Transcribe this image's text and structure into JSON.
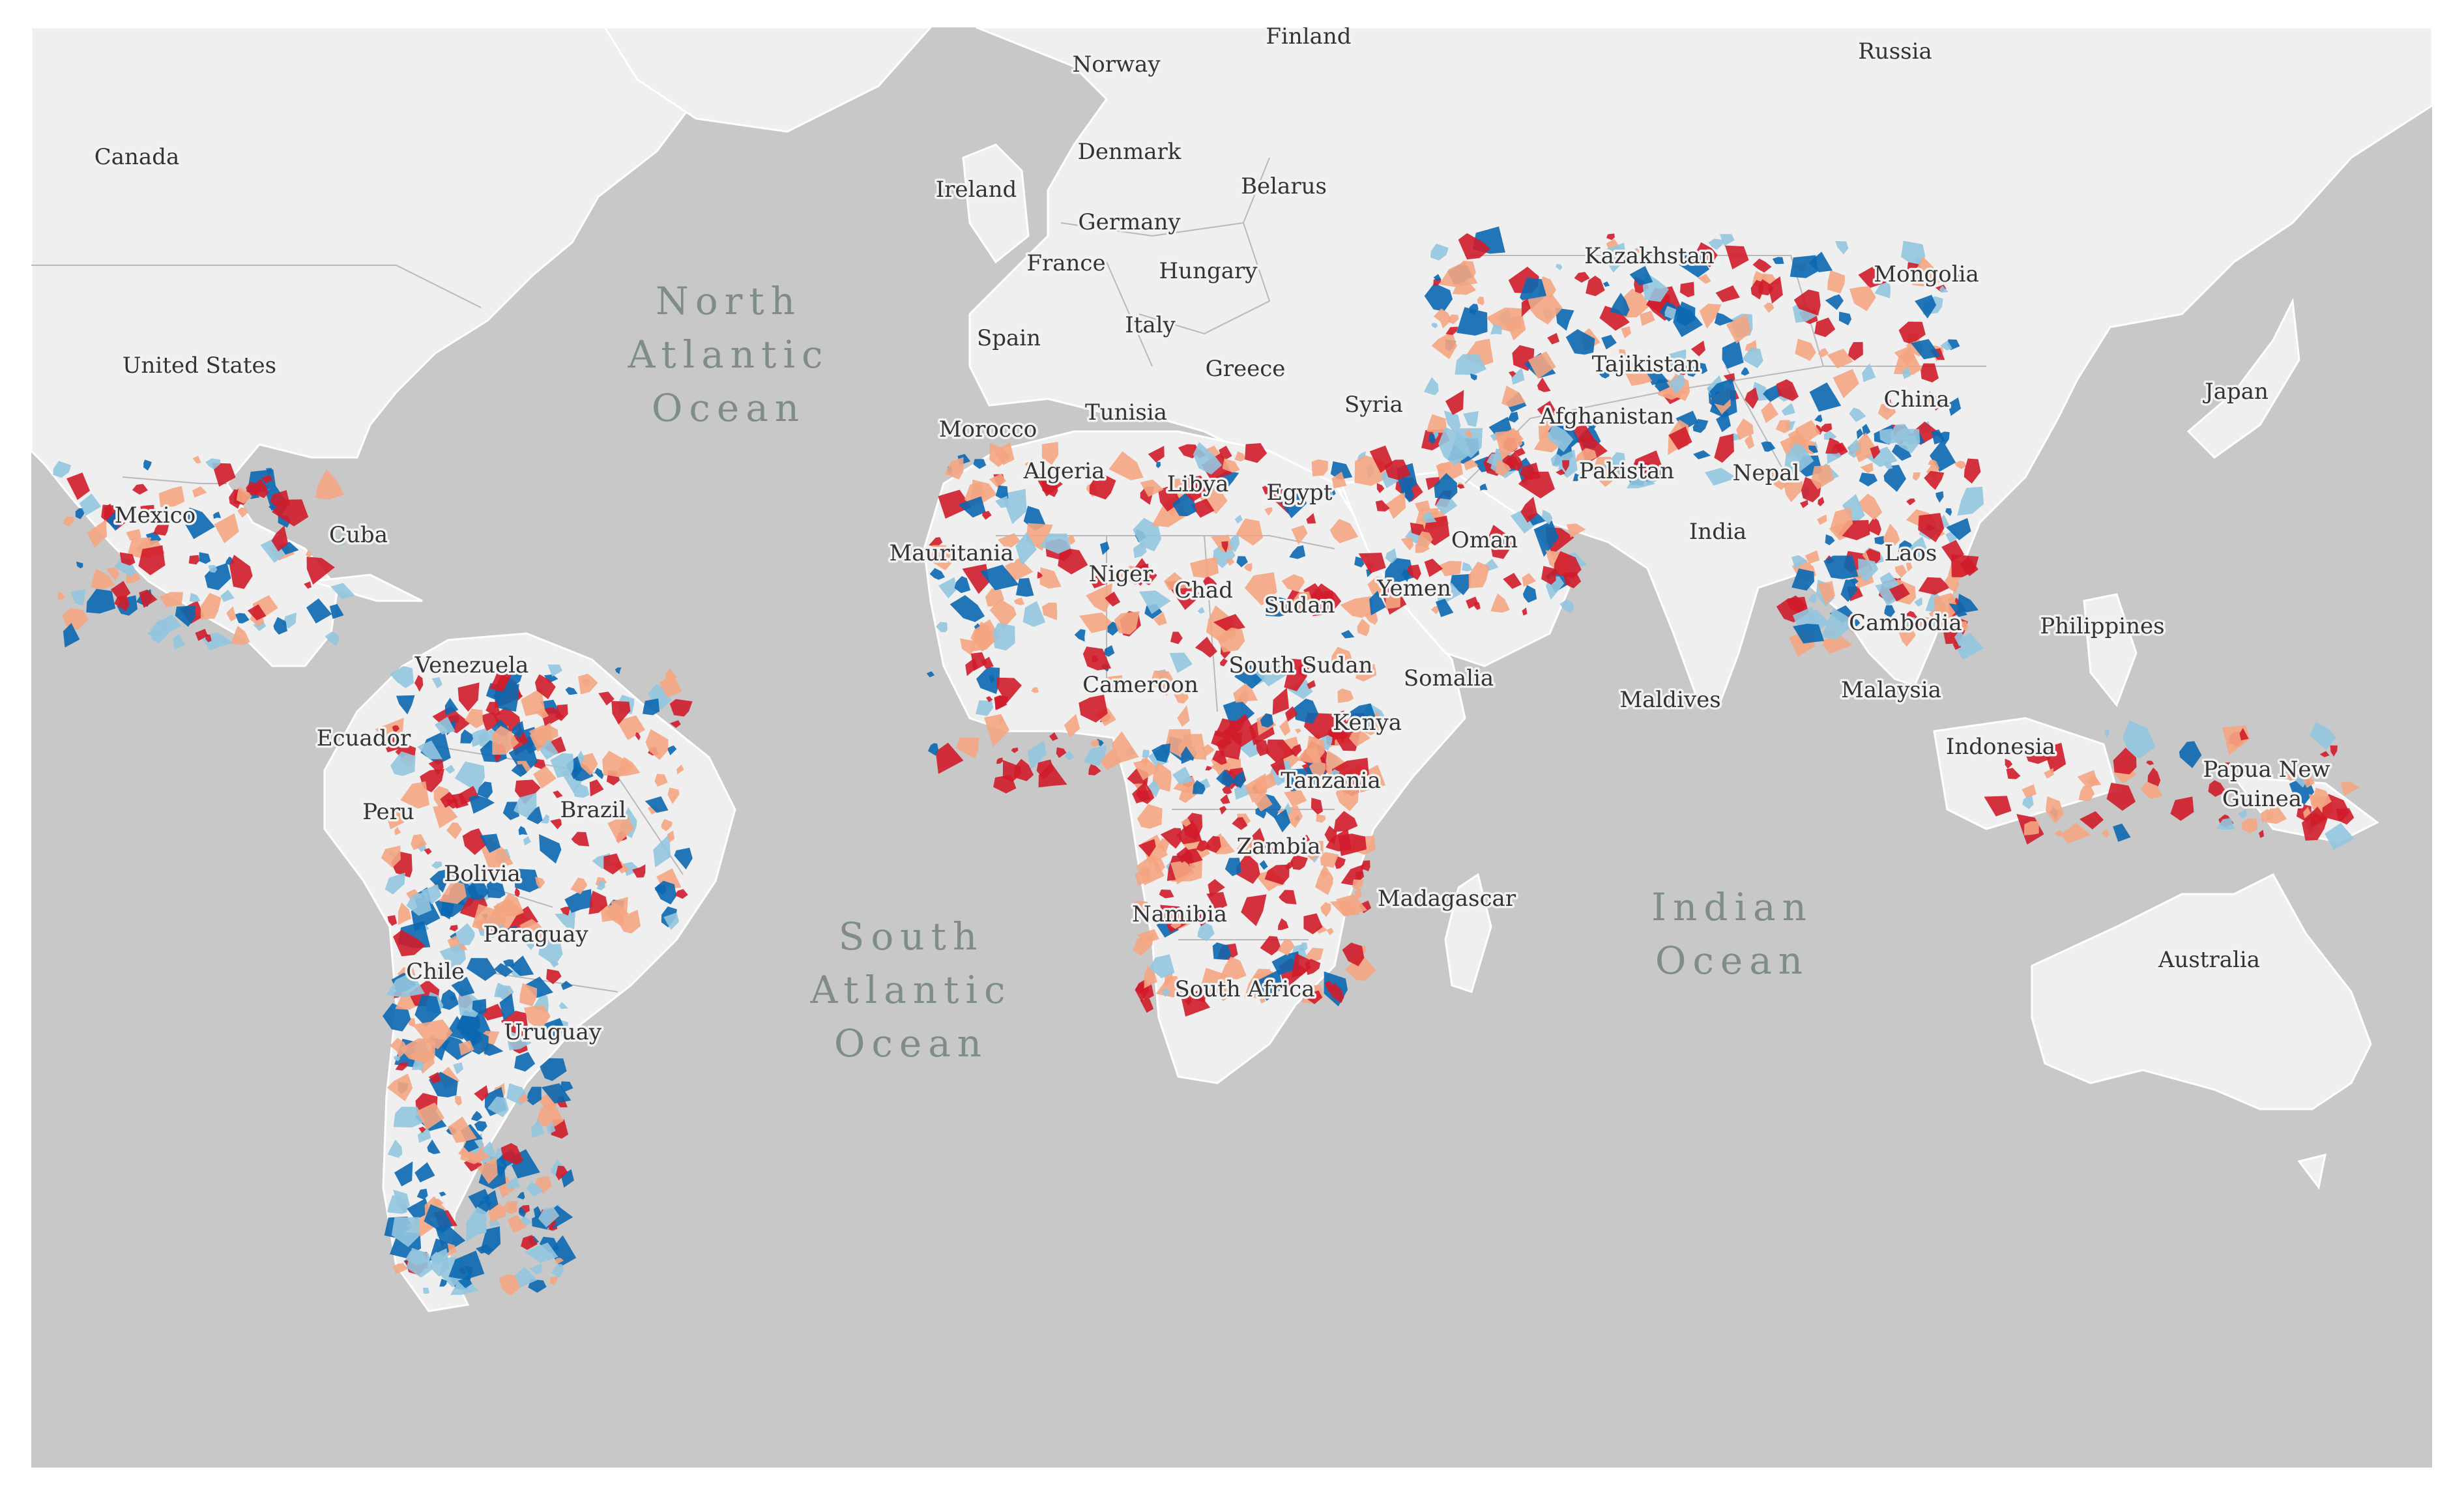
{
  "colors": {
    "ocean": "#c8c8c8",
    "land": "#efefef",
    "border": "#b9b9b9",
    "label_text": "#333333",
    "ocean_text": "#7e8c8b",
    "dark_red": "#d01c2a",
    "light_red": "#f4a582",
    "dark_blue": "#0b68b0",
    "light_blue": "#92c5de"
  },
  "oceans": [
    {
      "id": "north-atlantic",
      "lines": [
        "North",
        "Atlantic",
        "Ocean"
      ]
    },
    {
      "id": "south-atlantic",
      "lines": [
        "South",
        "Atlantic",
        "Ocean"
      ]
    },
    {
      "id": "indian",
      "lines": [
        "Indian",
        "Ocean"
      ]
    }
  ],
  "labels": {
    "finland": "Finland",
    "russia": "Russia",
    "norway": "Norway",
    "canada": "Canada",
    "denmark": "Denmark",
    "ireland": "Ireland",
    "belarus": "Belarus",
    "germany": "Germany",
    "kazakhstan": "Kazakhstan",
    "france": "France",
    "hungary": "Hungary",
    "mongolia": "Mongolia",
    "united_states": "United States",
    "spain": "Spain",
    "italy": "Italy",
    "tajikistan": "Tajikistan",
    "greece": "Greece",
    "japan": "Japan",
    "syria": "Syria",
    "afghanistan": "Afghanistan",
    "china": "China",
    "tunisia": "Tunisia",
    "morocco": "Morocco",
    "algeria": "Algeria",
    "pakistan": "Pakistan",
    "libya": "Libya",
    "egypt": "Egypt",
    "nepal": "Nepal",
    "mexico": "Mexico",
    "cuba": "Cuba",
    "india": "India",
    "oman": "Oman",
    "mauritania": "Mauritania",
    "laos": "Laos",
    "niger": "Niger",
    "chad": "Chad",
    "yemen": "Yemen",
    "sudan": "Sudan",
    "cambodia": "Cambodia",
    "philippines": "Philippines",
    "venezuela": "Venezuela",
    "south_sudan": "South Sudan",
    "somalia": "Somalia",
    "cameroon": "Cameroon",
    "malaysia": "Malaysia",
    "maldives": "Maldives",
    "ecuador": "Ecuador",
    "kenya": "Kenya",
    "indonesia": "Indonesia",
    "papua_new_guinea_1": "Papua New",
    "papua_new_guinea_2": "Guinea",
    "tanzania": "Tanzania",
    "brazil": "Brazil",
    "peru": "Peru",
    "zambia": "Zambia",
    "bolivia": "Bolivia",
    "madagascar": "Madagascar",
    "namibia": "Namibia",
    "paraguay": "Paraguay",
    "australia": "Australia",
    "chile": "Chile",
    "south_africa": "South Africa",
    "uruguay": "Uruguay"
  }
}
